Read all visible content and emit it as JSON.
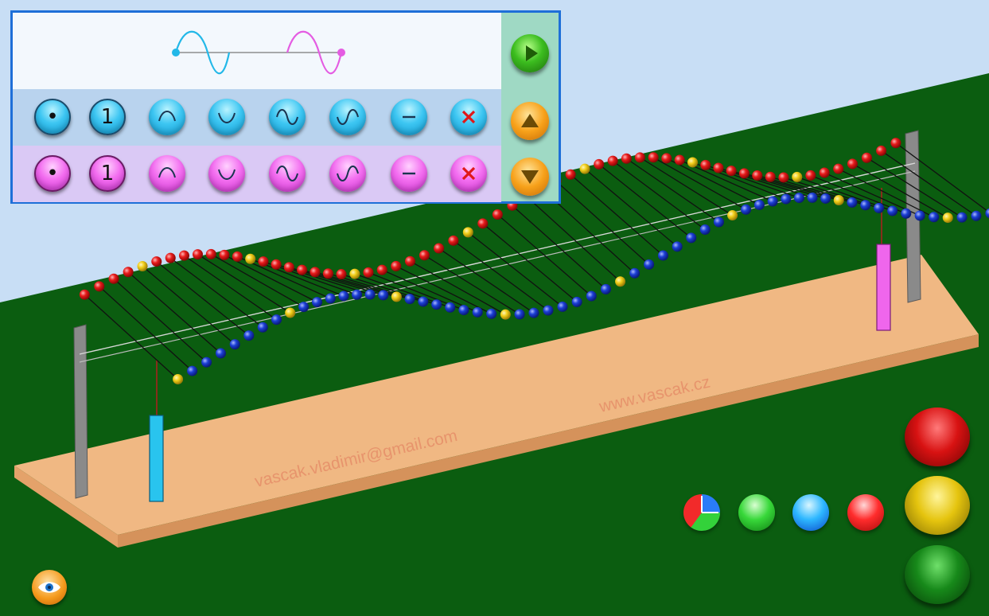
{
  "scene": {
    "watermark_email": "vascak.vladimir@gmail.com",
    "watermark_site": "www.vascak.cz"
  },
  "panel": {
    "blue_row": [
      {
        "name": "blue-dot-button",
        "label": "•"
      },
      {
        "name": "blue-one-button",
        "label": "1"
      },
      {
        "name": "blue-crest-button",
        "icon": "crest-icon"
      },
      {
        "name": "blue-trough-button",
        "icon": "trough-icon"
      },
      {
        "name": "blue-sine-button",
        "icon": "sine-icon"
      },
      {
        "name": "blue-inverted-sine-button",
        "icon": "inverted-sine-icon"
      },
      {
        "name": "blue-flat-button",
        "icon": "minus-icon"
      },
      {
        "name": "blue-clear-button",
        "icon": "close-icon"
      }
    ],
    "pink_row": [
      {
        "name": "pink-dot-button",
        "label": "•"
      },
      {
        "name": "pink-one-button",
        "label": "1"
      },
      {
        "name": "pink-crest-button",
        "icon": "crest-icon"
      },
      {
        "name": "pink-trough-button",
        "icon": "trough-icon"
      },
      {
        "name": "pink-sine-button",
        "icon": "sine-icon"
      },
      {
        "name": "pink-inverted-sine-button",
        "icon": "inverted-sine-icon"
      },
      {
        "name": "pink-flat-button",
        "icon": "minus-icon"
      },
      {
        "name": "pink-clear-button",
        "icon": "close-icon"
      }
    ],
    "side": [
      "play-icon",
      "arrow-up-icon",
      "arrow-down-icon"
    ]
  },
  "colors": {
    "sky": "#c8def5",
    "grass": "#0b5d10",
    "board": "#f0b883",
    "blue_source": "#29c4ee",
    "pink_source": "#ef66ec",
    "ball_red": "#e81b1b",
    "ball_blue": "#1c3fd6",
    "ball_yellow": "#f2cf1a",
    "panel_border": "#1e6fd8"
  },
  "color_selector": [
    "color-wheel-icon",
    "green-ball",
    "blue-ball",
    "red-ball"
  ],
  "big_buttons": [
    "red-button",
    "yellow-button",
    "green-button"
  ],
  "eye_button": "eye-icon"
}
